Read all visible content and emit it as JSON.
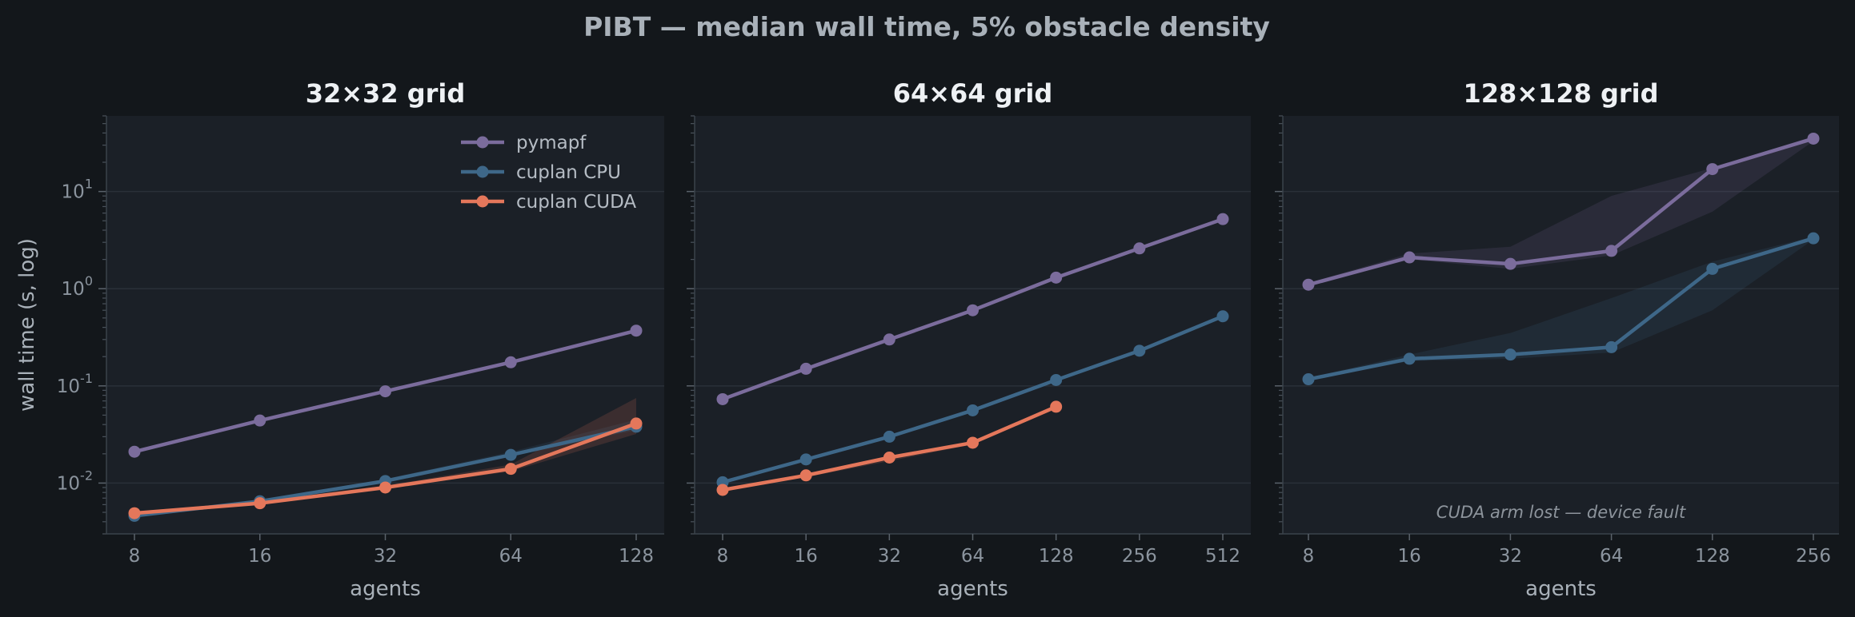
{
  "figure": {
    "title": "PIBT — median wall time, 5% obstacle density"
  },
  "colors": {
    "figure_bg": "#13171b",
    "panel_bg": "#1b2027",
    "grid": "#2a3038",
    "pymapf": "#7b6c9c",
    "cuplan_cpu": "#3e6788",
    "cuplan_cuda": "#e4775b"
  },
  "chart_data": [
    {
      "type": "line",
      "title": "32×32 grid",
      "xlabel": "agents",
      "ylabel": "wall time (s, log)",
      "xscale": "log2",
      "yscale": "log10",
      "ylim": [
        0.003,
        60
      ],
      "x_ticks": [
        8,
        16,
        32,
        64,
        128
      ],
      "grid": "horizontal major",
      "legend": "top-right",
      "series": [
        {
          "name": "pymapf",
          "color": "#7b6c9c",
          "x": [
            8,
            16,
            32,
            64,
            128
          ],
          "y": [
            0.021,
            0.044,
            0.088,
            0.175,
            0.37
          ]
        },
        {
          "name": "cuplan CPU",
          "color": "#3e6788",
          "x": [
            8,
            16,
            32,
            64,
            128
          ],
          "y": [
            0.0046,
            0.0065,
            0.0105,
            0.0195,
            0.038
          ],
          "band_low": [
            0.0045,
            0.0063,
            0.0102,
            0.019,
            0.035
          ],
          "band_high": [
            0.0048,
            0.0067,
            0.011,
            0.021,
            0.045
          ]
        },
        {
          "name": "cuplan CUDA",
          "color": "#e4775b",
          "x": [
            8,
            16,
            32,
            64,
            128
          ],
          "y": [
            0.0049,
            0.0062,
            0.009,
            0.014,
            0.041
          ],
          "band_low": [
            0.0047,
            0.006,
            0.0087,
            0.0132,
            0.032
          ],
          "band_high": [
            0.0051,
            0.0065,
            0.0094,
            0.0155,
            0.075
          ]
        }
      ]
    },
    {
      "type": "line",
      "title": "64×64 grid",
      "xlabel": "agents",
      "xscale": "log2",
      "yscale": "log10",
      "ylim": [
        0.003,
        60
      ],
      "x_ticks": [
        8,
        16,
        32,
        64,
        128,
        256,
        512
      ],
      "grid": "horizontal major",
      "series": [
        {
          "name": "pymapf",
          "color": "#7b6c9c",
          "x": [
            8,
            16,
            32,
            64,
            128,
            256,
            512
          ],
          "y": [
            0.073,
            0.15,
            0.3,
            0.6,
            1.3,
            2.6,
            5.2
          ]
        },
        {
          "name": "cuplan CPU",
          "color": "#3e6788",
          "x": [
            8,
            16,
            32,
            64,
            128,
            256,
            512
          ],
          "y": [
            0.0102,
            0.0175,
            0.03,
            0.056,
            0.115,
            0.23,
            0.52
          ]
        },
        {
          "name": "cuplan CUDA",
          "color": "#e4775b",
          "x": [
            8,
            16,
            32,
            64,
            128
          ],
          "y": [
            0.0085,
            0.012,
            0.0183,
            0.026,
            0.061
          ],
          "band_low": [
            0.0082,
            0.0115,
            0.0168,
            0.025,
            0.058
          ],
          "band_high": [
            0.0088,
            0.0125,
            0.019,
            0.027,
            0.064
          ]
        }
      ]
    },
    {
      "type": "line",
      "title": "128×128 grid",
      "xlabel": "agents",
      "xscale": "log2",
      "yscale": "log10",
      "ylim": [
        0.003,
        60
      ],
      "x_ticks": [
        8,
        16,
        32,
        64,
        128,
        256
      ],
      "grid": "horizontal major",
      "annotation": "CUDA arm lost — device fault",
      "series": [
        {
          "name": "pymapf",
          "color": "#7b6c9c",
          "x": [
            8,
            16,
            32,
            64,
            128,
            256
          ],
          "y": [
            1.1,
            2.1,
            1.8,
            2.45,
            17,
            35
          ],
          "band_low": [
            1.05,
            2.0,
            1.6,
            2.2,
            6.2,
            33
          ],
          "band_high": [
            1.15,
            2.3,
            2.7,
            9.0,
            17.5,
            37
          ]
        },
        {
          "name": "cuplan CPU",
          "color": "#3e6788",
          "x": [
            8,
            16,
            32,
            64,
            128,
            256
          ],
          "y": [
            0.117,
            0.19,
            0.21,
            0.25,
            1.6,
            3.3
          ],
          "band_low": [
            0.113,
            0.18,
            0.19,
            0.22,
            0.6,
            3.2
          ],
          "band_high": [
            0.121,
            0.21,
            0.35,
            0.8,
            1.9,
            3.45
          ]
        }
      ]
    }
  ]
}
